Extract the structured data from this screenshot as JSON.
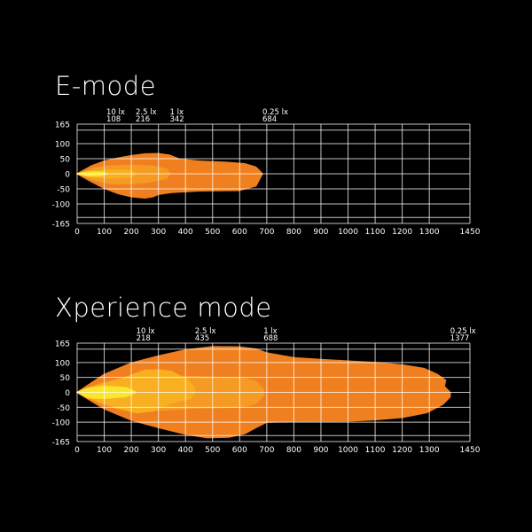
{
  "colors": {
    "background": "#000000",
    "zone_0_25lx": "#f0801f",
    "zone_1lx": "#f59a22",
    "zone_2_5lx": "#f8b021",
    "zone_10lx": "#fbe62a",
    "grid": "#ffffff"
  },
  "chart_data": [
    {
      "type": "area",
      "title": "E-mode",
      "xlim": [
        0,
        1450
      ],
      "ylim": [
        -165,
        165
      ],
      "xticks": [
        0,
        100,
        200,
        300,
        400,
        500,
        600,
        700,
        800,
        900,
        1000,
        1100,
        1200,
        1300,
        1450
      ],
      "yticks": [
        165,
        100,
        50,
        0,
        -50,
        -100,
        -165
      ],
      "extra_h_lines": [
        145,
        -145
      ],
      "grid": true,
      "lux_labels": [
        {
          "lux": "10 lx",
          "distance": "108"
        },
        {
          "lux": "2.5 lx",
          "distance": "216"
        },
        {
          "lux": "1 lx",
          "distance": "342"
        },
        {
          "lux": "0.25 lx",
          "distance": "684"
        }
      ],
      "zones": [
        {
          "level": "0.25 lx",
          "upper": [
            [
              0,
              0
            ],
            [
              50,
              25
            ],
            [
              100,
              42
            ],
            [
              150,
              52
            ],
            [
              200,
              60
            ],
            [
              250,
              66
            ],
            [
              300,
              67
            ],
            [
              340,
              62
            ],
            [
              380,
              48
            ],
            [
              450,
              42
            ],
            [
              550,
              38
            ],
            [
              620,
              33
            ],
            [
              660,
              22
            ],
            [
              684,
              0
            ]
          ],
          "lower": [
            [
              0,
              0
            ],
            [
              50,
              -25
            ],
            [
              100,
              -48
            ],
            [
              150,
              -65
            ],
            [
              200,
              -76
            ],
            [
              250,
              -80
            ],
            [
              280,
              -76
            ],
            [
              300,
              -68
            ],
            [
              350,
              -62
            ],
            [
              450,
              -57
            ],
            [
              600,
              -55
            ],
            [
              660,
              -40
            ],
            [
              684,
              0
            ]
          ]
        },
        {
          "level": "1 lx",
          "upper": [
            [
              0,
              0
            ],
            [
              60,
              18
            ],
            [
              120,
              26
            ],
            [
              200,
              28
            ],
            [
              280,
              25
            ],
            [
              330,
              15
            ],
            [
              342,
              0
            ]
          ],
          "lower": [
            [
              0,
              0
            ],
            [
              60,
              -20
            ],
            [
              120,
              -32
            ],
            [
              180,
              -34
            ],
            [
              260,
              -28
            ],
            [
              330,
              -15
            ],
            [
              342,
              0
            ]
          ]
        },
        {
          "level": "2.5 lx",
          "upper": [
            [
              0,
              0
            ],
            [
              60,
              10
            ],
            [
              120,
              12
            ],
            [
              200,
              10
            ],
            [
              216,
              0
            ]
          ],
          "lower": [
            [
              0,
              0
            ],
            [
              60,
              -12
            ],
            [
              120,
              -14
            ],
            [
              200,
              -10
            ],
            [
              216,
              0
            ]
          ]
        },
        {
          "level": "10 lx",
          "upper": [
            [
              0,
              0
            ],
            [
              40,
              6
            ],
            [
              90,
              6
            ],
            [
              108,
              0
            ]
          ],
          "lower": [
            [
              0,
              0
            ],
            [
              40,
              -7
            ],
            [
              90,
              -6
            ],
            [
              108,
              0
            ]
          ]
        }
      ]
    },
    {
      "type": "area",
      "title": "Xperience mode",
      "xlim": [
        0,
        1450
      ],
      "ylim": [
        -165,
        165
      ],
      "xticks": [
        0,
        100,
        200,
        300,
        400,
        500,
        600,
        700,
        800,
        900,
        1000,
        1100,
        1200,
        1300,
        1450
      ],
      "yticks": [
        165,
        100,
        50,
        0,
        -50,
        -100,
        -165
      ],
      "extra_h_lines": [
        145,
        -145
      ],
      "grid": true,
      "lux_labels": [
        {
          "lux": "10 lx",
          "distance": "218"
        },
        {
          "lux": "2.5 lx",
          "distance": "435"
        },
        {
          "lux": "1 lx",
          "distance": "688"
        },
        {
          "lux": "0.25 lx",
          "distance": "1377"
        }
      ],
      "zones": [
        {
          "level": "0.25 lx",
          "upper": [
            [
              0,
              0
            ],
            [
              50,
              30
            ],
            [
              100,
              60
            ],
            [
              200,
              98
            ],
            [
              300,
              122
            ],
            [
              400,
              142
            ],
            [
              500,
              153
            ],
            [
              600,
              152
            ],
            [
              660,
              145
            ],
            [
              700,
              132
            ],
            [
              800,
              116
            ],
            [
              900,
              110
            ],
            [
              1000,
              105
            ],
            [
              1100,
              100
            ],
            [
              1200,
              92
            ],
            [
              1280,
              80
            ],
            [
              1330,
              60
            ],
            [
              1360,
              40
            ],
            [
              1355,
              20
            ],
            [
              1377,
              0
            ]
          ],
          "lower": [
            [
              0,
              0
            ],
            [
              50,
              -28
            ],
            [
              100,
              -55
            ],
            [
              200,
              -93
            ],
            [
              300,
              -118
            ],
            [
              400,
              -140
            ],
            [
              480,
              -152
            ],
            [
              560,
              -150
            ],
            [
              620,
              -138
            ],
            [
              660,
              -118
            ],
            [
              700,
              -100
            ],
            [
              800,
              -97
            ],
            [
              1000,
              -96
            ],
            [
              1100,
              -92
            ],
            [
              1200,
              -84
            ],
            [
              1290,
              -68
            ],
            [
              1350,
              -40
            ],
            [
              1377,
              -15
            ],
            [
              1377,
              0
            ]
          ]
        },
        {
          "level": "1 lx",
          "upper": [
            [
              0,
              0
            ],
            [
              80,
              28
            ],
            [
              150,
              45
            ],
            [
              250,
              55
            ],
            [
              350,
              55
            ],
            [
              450,
              52
            ],
            [
              600,
              48
            ],
            [
              660,
              38
            ],
            [
              688,
              10
            ],
            [
              688,
              0
            ]
          ],
          "lower": [
            [
              0,
              0
            ],
            [
              80,
              -35
            ],
            [
              150,
              -55
            ],
            [
              250,
              -62
            ],
            [
              350,
              -58
            ],
            [
              450,
              -52
            ],
            [
              600,
              -50
            ],
            [
              660,
              -38
            ],
            [
              688,
              -10
            ],
            [
              688,
              0
            ]
          ]
        },
        {
          "level": "2.5 lx",
          "upper": [
            [
              0,
              0
            ],
            [
              60,
              18
            ],
            [
              150,
              40
            ],
            [
              250,
              74
            ],
            [
              300,
              75
            ],
            [
              350,
              70
            ],
            [
              400,
              45
            ],
            [
              430,
              20
            ],
            [
              435,
              0
            ]
          ],
          "lower": [
            [
              0,
              0
            ],
            [
              60,
              -22
            ],
            [
              150,
              -52
            ],
            [
              220,
              -68
            ],
            [
              280,
              -62
            ],
            [
              340,
              -38
            ],
            [
              420,
              -20
            ],
            [
              435,
              0
            ]
          ]
        },
        {
          "level": "10 lx",
          "upper": [
            [
              0,
              0
            ],
            [
              40,
              14
            ],
            [
              100,
              20
            ],
            [
              180,
              16
            ],
            [
              218,
              0
            ]
          ],
          "lower": [
            [
              0,
              0
            ],
            [
              40,
              -18
            ],
            [
              100,
              -20
            ],
            [
              180,
              -14
            ],
            [
              218,
              0
            ]
          ]
        }
      ]
    }
  ]
}
